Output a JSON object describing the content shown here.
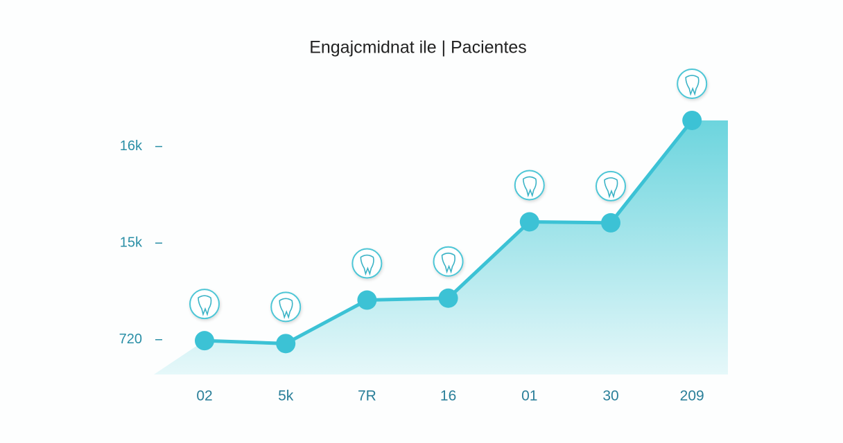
{
  "chart_data": {
    "type": "line",
    "title": "Engajcmidnat ile | Pacientes",
    "categories": [
      "02",
      "5k",
      "7R",
      "16",
      "01",
      "30",
      "209"
    ],
    "series": [
      {
        "name": "Pacientes",
        "color": "#3cc2d5",
        "values": [
          0.99,
          0.96,
          1.41,
          1.43,
          2.22,
          2.21,
          3.27
        ]
      }
    ],
    "ylim": [
      0.64,
      3.8
    ],
    "yticks": [
      {
        "value": 1,
        "label": "720"
      },
      {
        "value": 2,
        "label": "15k"
      },
      {
        "value": 3,
        "label": "16k"
      }
    ],
    "area": true
  }
}
